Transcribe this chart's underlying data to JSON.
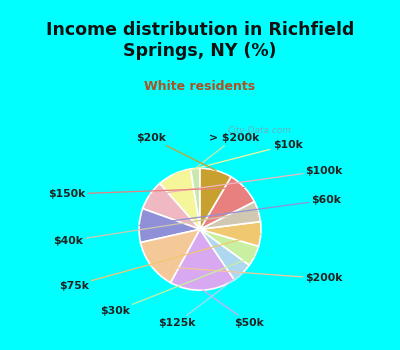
{
  "title": "Income distribution in Richfield\nSprings, NY (%)",
  "subtitle": "White residents",
  "title_color": "#111111",
  "subtitle_color": "#b05020",
  "bg_top_color": "#00ffff",
  "bg_chart_color_top": "#e8f5ee",
  "bg_chart_color_bottom": "#c8e8d8",
  "labels": [
    "> $200k",
    "$10k",
    "$100k",
    "$60k",
    "$200k",
    "$50k",
    "$125k",
    "$30k",
    "$75k",
    "$40k",
    "$150k",
    "$20k"
  ],
  "values": [
    2.5,
    9.0,
    8.0,
    9.0,
    13.5,
    17.5,
    5.5,
    5.5,
    6.5,
    5.5,
    9.0,
    8.5
  ],
  "colors": [
    "#c8e8b0",
    "#f5f599",
    "#f0b8c0",
    "#9090d8",
    "#f5c898",
    "#d8a8f0",
    "#add8f0",
    "#c8f0a0",
    "#f0c870",
    "#d0c8b0",
    "#e88080",
    "#c8a030"
  ],
  "startangle": 90,
  "label_fontsize": 7.8,
  "label_color": "#222222",
  "watermark": "City-Data.com",
  "title_fontsize": 12.5,
  "subtitle_fontsize": 9
}
